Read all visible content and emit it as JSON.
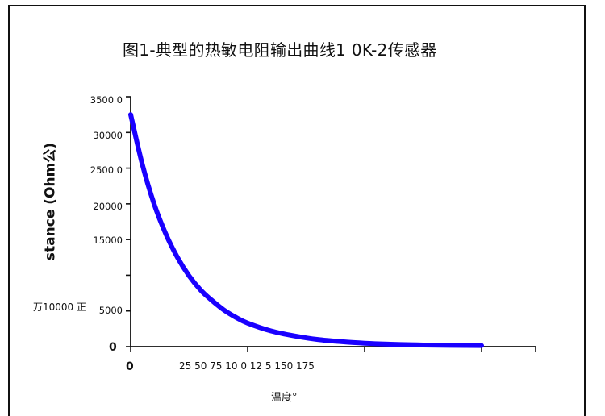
{
  "chart_data": {
    "type": "line",
    "title": "图1-典型的热敏电阻输出曲线1 0K-2传感器",
    "xlabel": "温度°",
    "ylabel": "stance (Ohm公)",
    "ylabel_extra": "万10000 正",
    "y_tick_labels": [
      "3500 0",
      "30000",
      "2500 0",
      "20000",
      "15000",
      "5000"
    ],
    "y_zero_label": "0",
    "x_zero_label": "0",
    "x_tick_text": "25 50 75 10 0 12 5 150 175",
    "xlim": [
      0,
      175
    ],
    "ylim": [
      0,
      35000
    ],
    "grid": false,
    "series": [
      {
        "color": "#1a00ff",
        "x": [
          0,
          5,
          10,
          15,
          20,
          25,
          30,
          35,
          40,
          45,
          50,
          60,
          70,
          80,
          90,
          100,
          110,
          125,
          150
        ],
        "y": [
          32500,
          25500,
          20000,
          15800,
          12500,
          9900,
          7900,
          6400,
          5100,
          4100,
          3300,
          2200,
          1500,
          1000,
          700,
          480,
          350,
          230,
          150
        ]
      }
    ]
  }
}
